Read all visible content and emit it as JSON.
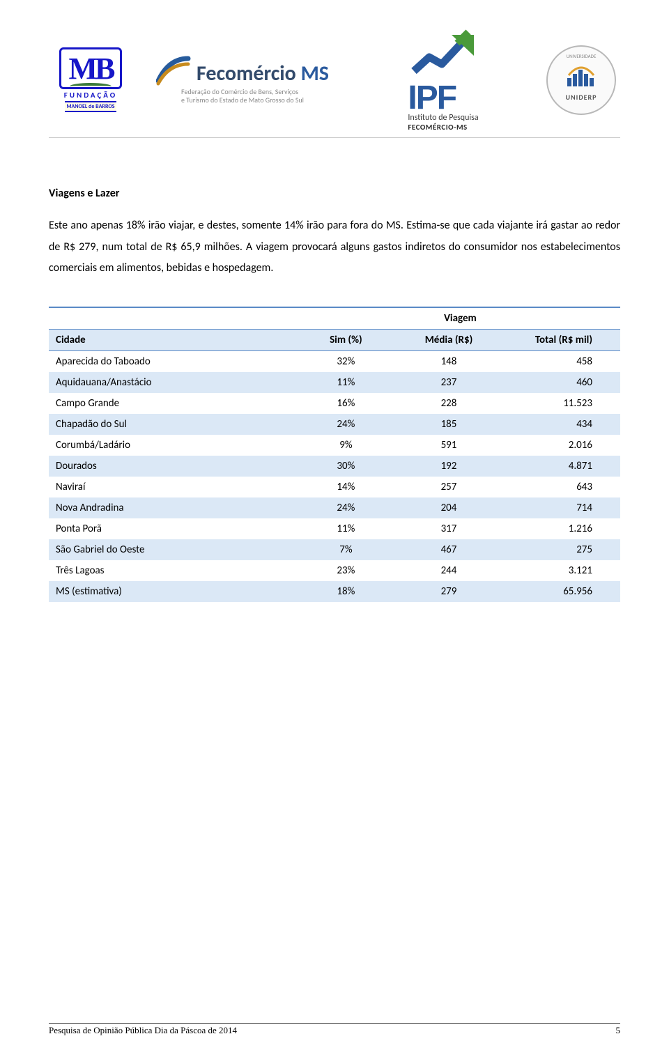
{
  "logos": {
    "mb": {
      "initials": "MB",
      "line1": "FUNDAÇÃO",
      "line2": "MANOEL de BARROS"
    },
    "fecomercio": {
      "name_part1": "Fecomércio ",
      "name_part2": "MS",
      "subtitle": "Federação do Comércio de Bens, Serviços\ne Turismo do Estado de Mato Grosso do Sul"
    },
    "ipf": {
      "big": "IPF",
      "sub1": "Instituto de Pesquisa",
      "sub2": "FECOMÉRCIO-MS"
    },
    "uniderp": {
      "top": "UNIVERSIDADE",
      "name": "UNIDERP"
    }
  },
  "section": {
    "title": "Viagens e Lazer",
    "body": "Este ano apenas 18% irão viajar, e destes, somente 14% irão para fora do MS. Estima-se que cada viajante irá gastar ao redor de R$ 279, num total de R$ 65,9 milhões. A viagem provocará alguns gastos indiretos do consumidor nos estabelecimentos comerciais em alimentos, bebidas e hospedagem."
  },
  "table": {
    "super_header": "Viagem",
    "columns": {
      "c1": "Cidade",
      "c2": "Sim (%)",
      "c3": "Média (R$)",
      "c4": "Total (R$ mil)"
    },
    "rows": [
      {
        "city": "Aparecida do Taboado",
        "sim": "32%",
        "media": "148",
        "total": "458",
        "shade": false
      },
      {
        "city": "Aquidauana/Anastácio",
        "sim": "11%",
        "media": "237",
        "total": "460",
        "shade": true
      },
      {
        "city": "Campo Grande",
        "sim": "16%",
        "media": "228",
        "total": "11.523",
        "shade": false
      },
      {
        "city": "Chapadão do Sul",
        "sim": "24%",
        "media": "185",
        "total": "434",
        "shade": true
      },
      {
        "city": "Corumbá/Ladário",
        "sim": "9%",
        "media": "591",
        "total": "2.016",
        "shade": false
      },
      {
        "city": "Dourados",
        "sim": "30%",
        "media": "192",
        "total": "4.871",
        "shade": true
      },
      {
        "city": "Naviraí",
        "sim": "14%",
        "media": "257",
        "total": "643",
        "shade": false
      },
      {
        "city": "Nova Andradina",
        "sim": "24%",
        "media": "204",
        "total": "714",
        "shade": true
      },
      {
        "city": "Ponta Porã",
        "sim": "11%",
        "media": "317",
        "total": "1.216",
        "shade": false
      },
      {
        "city": "São Gabriel do Oeste",
        "sim": "7%",
        "media": "467",
        "total": "275",
        "shade": true
      },
      {
        "city": "Três Lagoas",
        "sim": "23%",
        "media": "244",
        "total": "3.121",
        "shade": false
      },
      {
        "city": "MS (estimativa)",
        "sim": "18%",
        "media": "279",
        "total": "65.956",
        "shade": true
      }
    ],
    "styling": {
      "header_border_color": "#5a8ac6",
      "row_shade_color": "#dbe8f6",
      "font_size": 15,
      "col_widths_pct": [
        44,
        16,
        20,
        20
      ]
    }
  },
  "footer": {
    "text": "Pesquisa de Opinião Pública Dia da Páscoa de 2014",
    "page": "5"
  }
}
